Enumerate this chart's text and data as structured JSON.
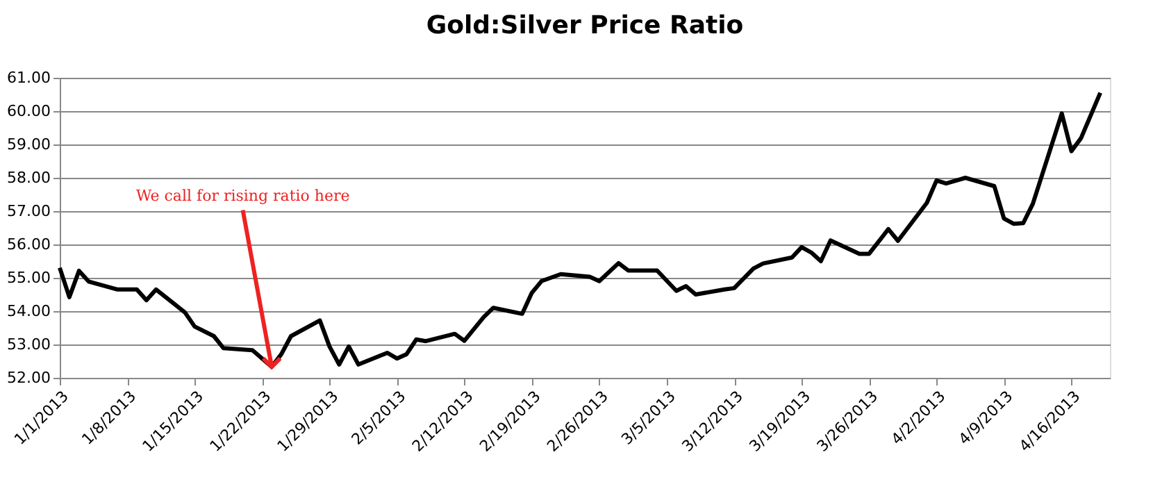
{
  "chart_data": {
    "type": "line",
    "title": "Gold:Silver Price Ratio",
    "x": [
      "2013-01-01",
      "2013-01-02",
      "2013-01-03",
      "2013-01-04",
      "2013-01-07",
      "2013-01-09",
      "2013-01-10",
      "2013-01-11",
      "2013-01-14",
      "2013-01-15",
      "2013-01-17",
      "2013-01-18",
      "2013-01-21",
      "2013-01-23",
      "2013-01-24",
      "2013-01-25",
      "2013-01-28",
      "2013-01-29",
      "2013-01-30",
      "2013-01-31",
      "2013-02-01",
      "2013-02-04",
      "2013-02-05",
      "2013-02-06",
      "2013-02-07",
      "2013-02-08",
      "2013-02-11",
      "2013-02-12",
      "2013-02-14",
      "2013-02-15",
      "2013-02-18",
      "2013-02-19",
      "2013-02-20",
      "2013-02-22",
      "2013-02-25",
      "2013-02-26",
      "2013-02-28",
      "2013-03-01",
      "2013-03-04",
      "2013-03-06",
      "2013-03-07",
      "2013-03-08",
      "2013-03-11",
      "2013-03-12",
      "2013-03-14",
      "2013-03-15",
      "2013-03-18",
      "2013-03-19",
      "2013-03-20",
      "2013-03-21",
      "2013-03-22",
      "2013-03-25",
      "2013-03-26",
      "2013-03-28",
      "2013-03-29",
      "2013-04-01",
      "2013-04-02",
      "2013-04-03",
      "2013-04-05",
      "2013-04-08",
      "2013-04-09",
      "2013-04-10",
      "2013-04-11",
      "2013-04-12",
      "2013-04-15",
      "2013-04-16",
      "2013-04-17",
      "2013-04-19"
    ],
    "series": [
      {
        "color": "#000000",
        "values": [
          55.3,
          54.42,
          55.21,
          54.89,
          54.65,
          54.65,
          54.33,
          54.65,
          53.96,
          53.54,
          53.25,
          52.89,
          52.83,
          52.33,
          52.71,
          53.25,
          53.72,
          52.94,
          52.4,
          52.94,
          52.4,
          52.75,
          52.58,
          52.71,
          53.15,
          53.1,
          53.32,
          53.11,
          53.82,
          54.1,
          53.92,
          54.55,
          54.9,
          55.11,
          55.03,
          54.9,
          55.44,
          55.22,
          55.22,
          54.61,
          54.75,
          54.5,
          54.65,
          54.69,
          55.28,
          55.43,
          55.61,
          55.92,
          55.76,
          55.5,
          56.12,
          55.72,
          55.72,
          56.46,
          56.11,
          57.25,
          57.92,
          57.83,
          58.0,
          57.75,
          56.78,
          56.62,
          56.64,
          57.22,
          59.93,
          58.8,
          59.19,
          60.55
        ]
      }
    ],
    "xlim": [
      "2013-01-01",
      "2013-04-20"
    ],
    "xticks": [
      {
        "value": "2013-01-01",
        "label": "1/1/2013"
      },
      {
        "value": "2013-01-08",
        "label": "1/8/2013"
      },
      {
        "value": "2013-01-15",
        "label": "1/15/2013"
      },
      {
        "value": "2013-01-22",
        "label": "1/22/2013"
      },
      {
        "value": "2013-01-29",
        "label": "1/29/2013"
      },
      {
        "value": "2013-02-05",
        "label": "2/5/2013"
      },
      {
        "value": "2013-02-12",
        "label": "2/12/2013"
      },
      {
        "value": "2013-02-19",
        "label": "2/19/2013"
      },
      {
        "value": "2013-02-26",
        "label": "2/26/2013"
      },
      {
        "value": "2013-03-05",
        "label": "3/5/2013"
      },
      {
        "value": "2013-03-12",
        "label": "3/12/2013"
      },
      {
        "value": "2013-03-19",
        "label": "3/19/2013"
      },
      {
        "value": "2013-03-26",
        "label": "3/26/2013"
      },
      {
        "value": "2013-04-02",
        "label": "4/2/2013"
      },
      {
        "value": "2013-04-09",
        "label": "4/9/2013"
      },
      {
        "value": "2013-04-16",
        "label": "4/16/2013"
      }
    ],
    "ylim": [
      52,
      61
    ],
    "yticks": [
      {
        "value": 52,
        "label": "52.00"
      },
      {
        "value": 53,
        "label": "53.00"
      },
      {
        "value": 54,
        "label": "54.00"
      },
      {
        "value": 55,
        "label": "55.00"
      },
      {
        "value": 56,
        "label": "56.00"
      },
      {
        "value": 57,
        "label": "57.00"
      },
      {
        "value": 58,
        "label": "58.00"
      },
      {
        "value": 59,
        "label": "59.00"
      },
      {
        "value": 60,
        "label": "60.00"
      },
      {
        "value": 61,
        "label": "61.00"
      }
    ],
    "grid": "y",
    "marker": "none",
    "line_style": "solid",
    "annotations": [
      {
        "text": "We call for rising ratio here",
        "x": "2013-01-23",
        "y": 52.33
      }
    ]
  }
}
